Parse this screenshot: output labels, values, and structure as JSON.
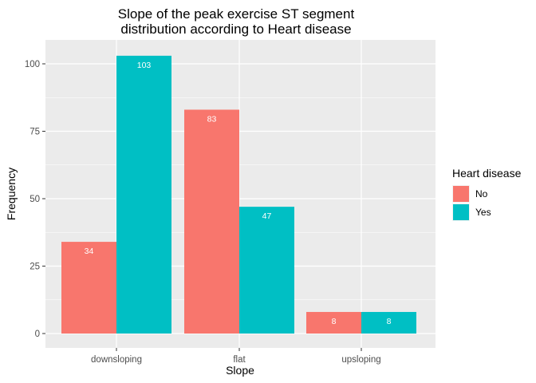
{
  "chart_data": {
    "type": "bar",
    "title_line1": "Slope of the peak exercise ST segment",
    "title_line2": "distribution according to Heart disease",
    "xlabel": "Slope",
    "ylabel": "Frequency",
    "categories": [
      "downsloping",
      "flat",
      "upsloping"
    ],
    "series": [
      {
        "name": "No",
        "values": [
          34,
          83,
          8
        ],
        "color": "#F8766D"
      },
      {
        "name": "Yes",
        "values": [
          103,
          47,
          8
        ],
        "color": "#00BFC4"
      }
    ],
    "ylim": [
      0,
      108
    ],
    "yticks": [
      0,
      25,
      50,
      75,
      100
    ],
    "grid": true,
    "panel_background": "#EBEBEB",
    "legend": {
      "title": "Heart disease",
      "position": "right"
    }
  }
}
